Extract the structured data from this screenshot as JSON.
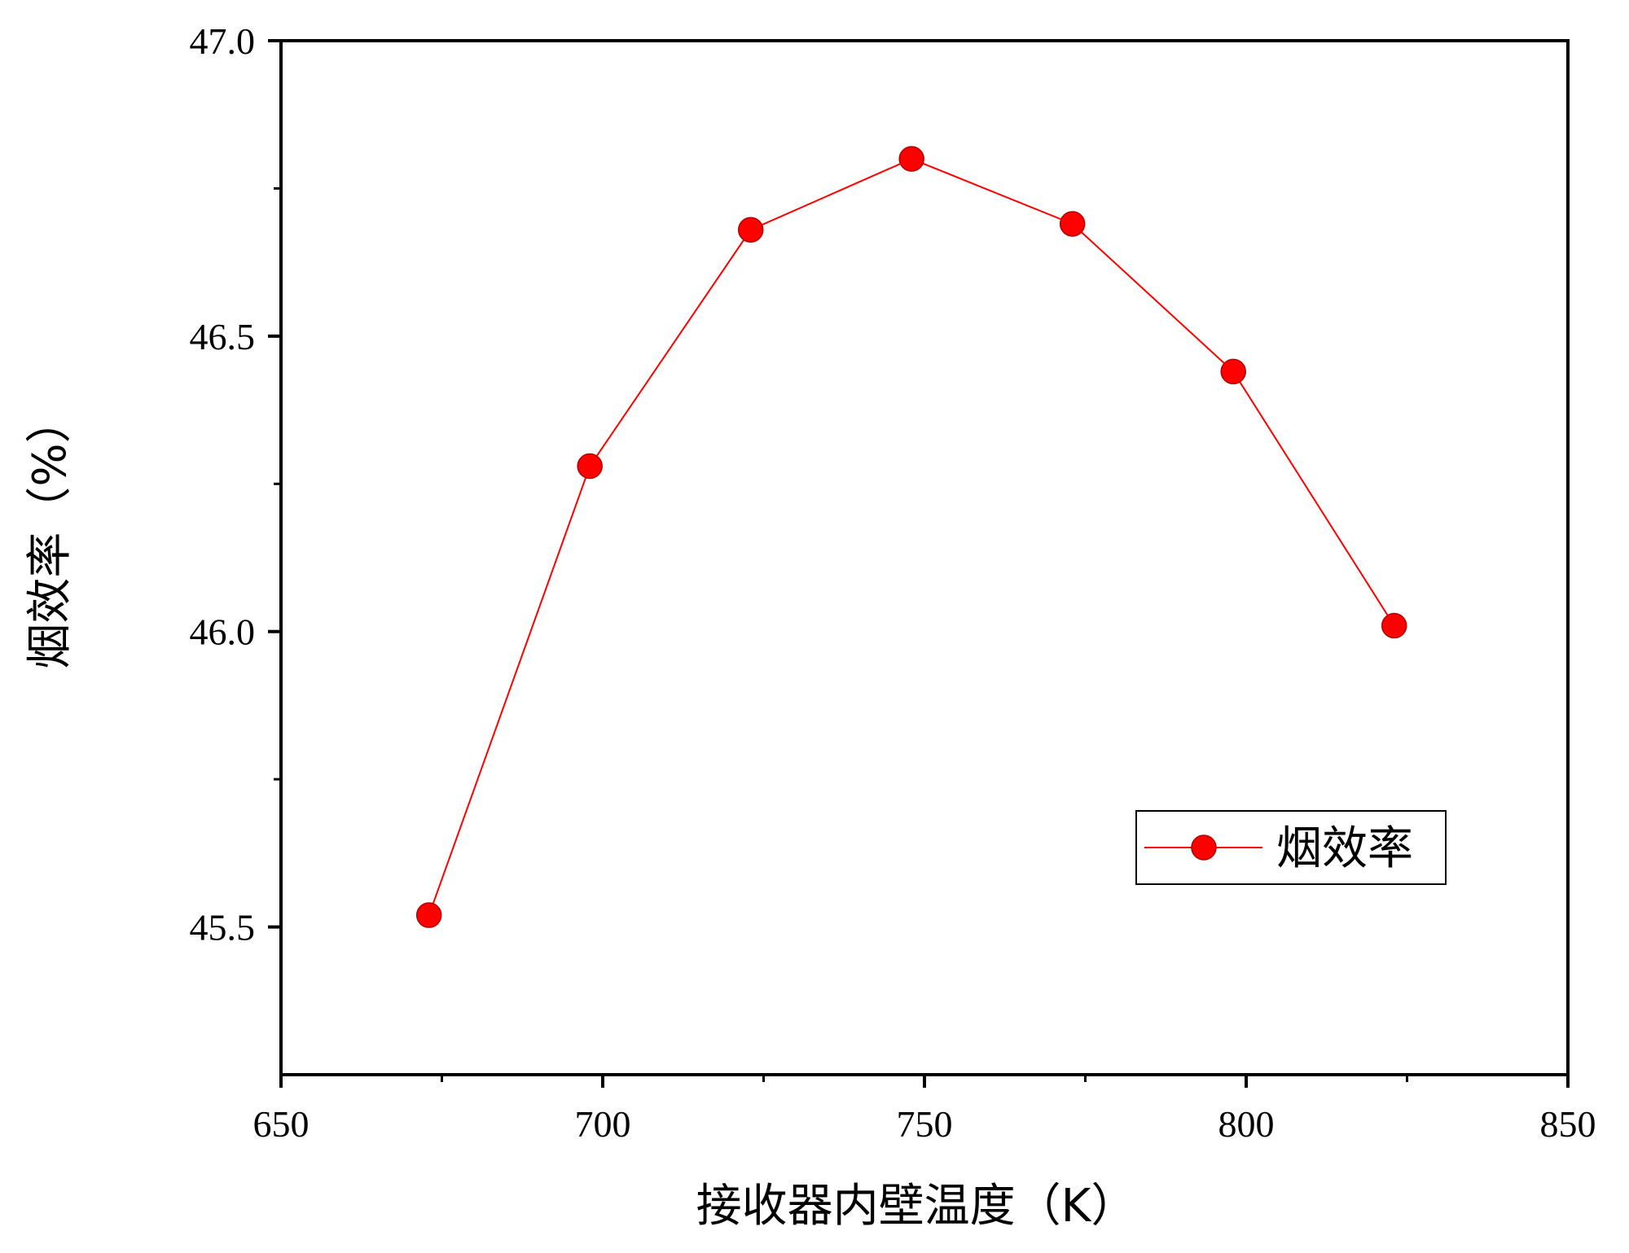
{
  "chart_data": {
    "type": "line",
    "xlabel": "接收器内壁温度（K）",
    "ylabel": "烟效率（%）",
    "xlim": [
      650,
      850
    ],
    "ylim": [
      45.25,
      47.0
    ],
    "x_ticks": [
      650,
      700,
      750,
      800,
      850
    ],
    "x_tick_labels": [
      "650",
      "700",
      "750",
      "800",
      "850"
    ],
    "x_minor_ticks": [
      675,
      725,
      775,
      825
    ],
    "y_ticks": [
      45.5,
      46.0,
      46.5,
      47.0
    ],
    "y_tick_labels": [
      "45.5",
      "46.0",
      "46.5",
      "47.0"
    ],
    "y_minor_ticks": [
      45.75,
      46.25,
      46.75
    ],
    "grid": false,
    "legend_position": "bottom-right",
    "series": [
      {
        "name": "烟效率",
        "color": "#ff0000",
        "marker": "circle",
        "x": [
          673,
          698,
          723,
          748,
          773,
          798,
          823
        ],
        "y": [
          45.52,
          46.28,
          46.68,
          46.8,
          46.69,
          46.44,
          46.01
        ]
      }
    ]
  }
}
